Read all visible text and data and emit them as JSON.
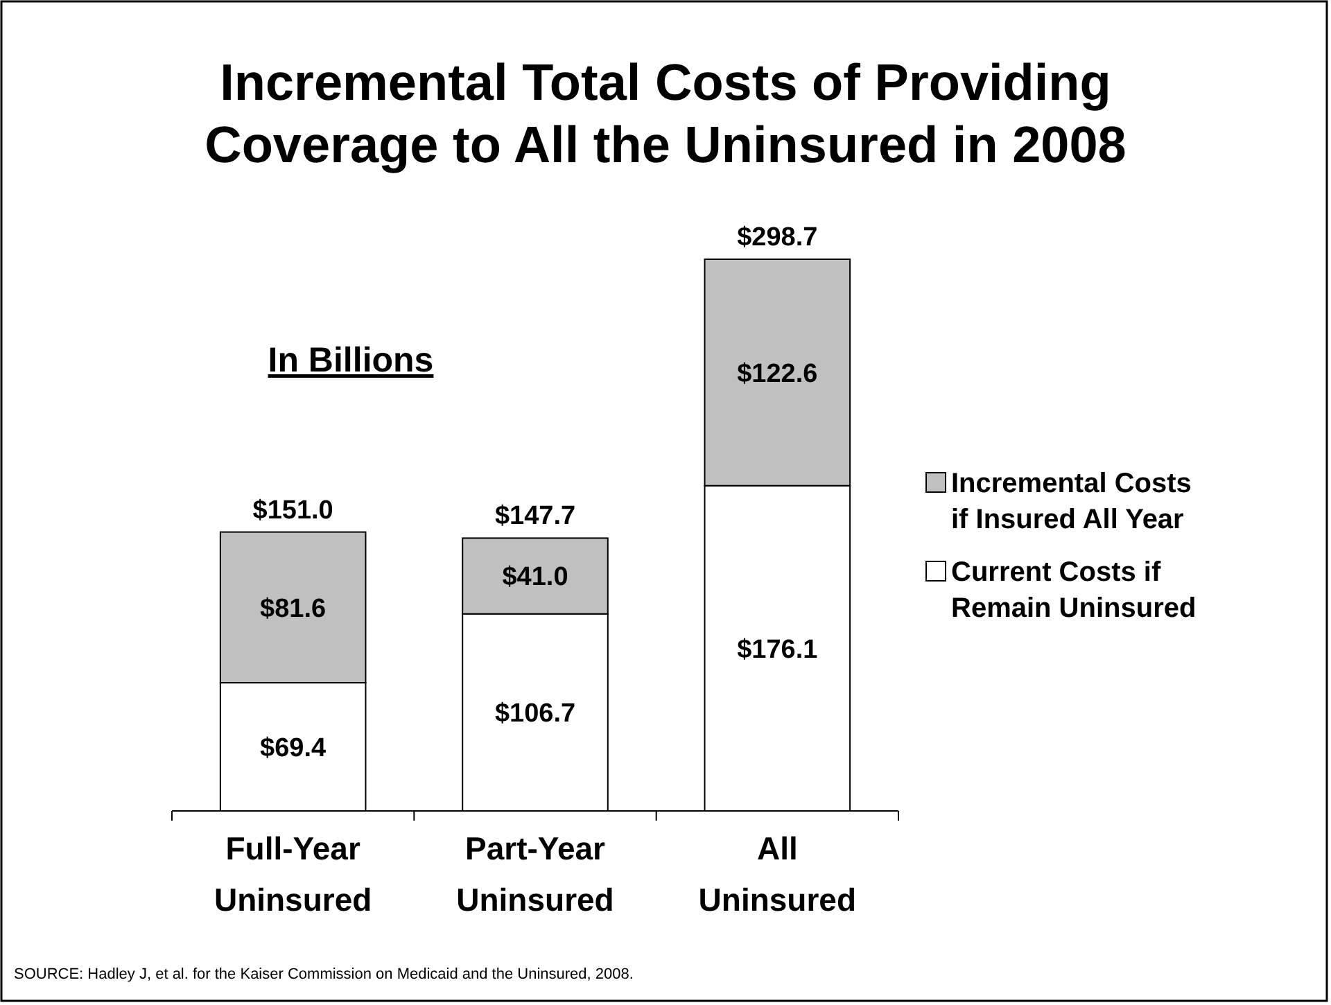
{
  "chart_data": {
    "type": "bar",
    "title": "Incremental Total Costs of Providing Coverage to All the Uninsured in 2008",
    "subtitle": "In Billions",
    "categories": [
      "Full-Year Uninsured",
      "Part-Year Uninsured",
      "All Uninsured"
    ],
    "stacked": true,
    "series": [
      {
        "name": "Current Costs if Remain Uninsured",
        "color": "#ffffff",
        "values": [
          69.4,
          106.7,
          176.1
        ],
        "value_labels": [
          "$69.4",
          "$106.7",
          "$176.1"
        ]
      },
      {
        "name": "Incremental Costs if Insured All Year",
        "color": "#c0c0c0",
        "values": [
          81.6,
          41.0,
          122.6
        ],
        "value_labels": [
          "$81.6",
          "$41.0",
          "$122.6"
        ]
      }
    ],
    "totals": [
      "$151.0",
      "$147.7",
      "$298.7"
    ],
    "legend": "right",
    "annotations": [
      "SOURCE: Hadley J, et al. for the Kaiser Commission on Medicaid and the Uninsured, 2008."
    ]
  }
}
